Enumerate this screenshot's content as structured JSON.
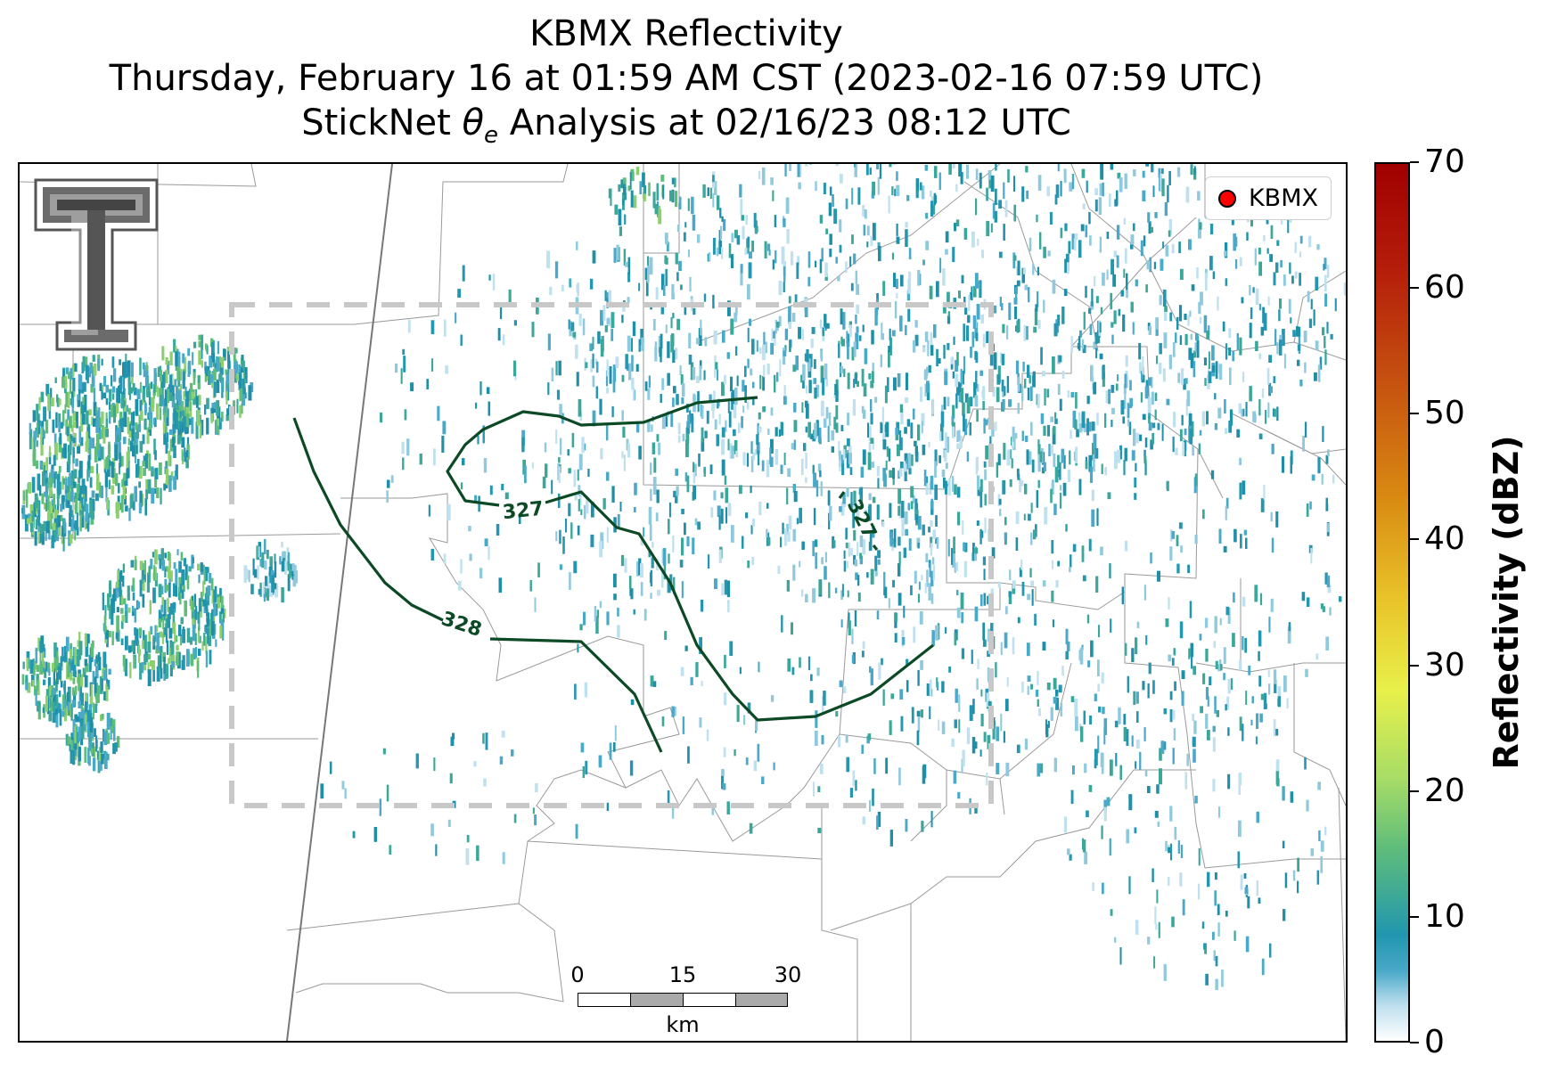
{
  "title": {
    "line1": "KBMX Reflectivity",
    "line2": "Thursday, February 16 at 01:59 AM CST (2023-02-16 07:59 UTC)",
    "line3_prefix": "StickNet ",
    "line3_symbol": "θ",
    "line3_subscript": "e",
    "line3_suffix": " Analysis at 02/16/23 08:12 UTC"
  },
  "legend": {
    "label": "KBMX",
    "marker_color": "#ff0000"
  },
  "colorbar": {
    "label": "Reflectivity (dBZ)",
    "ticks": [
      "0",
      "10",
      "20",
      "30",
      "40",
      "50",
      "60",
      "70"
    ],
    "range": [
      0,
      70
    ]
  },
  "contours": {
    "labels": [
      "327",
      "327",
      "328"
    ],
    "color": "#0b4a24"
  },
  "scalebar": {
    "ticks": [
      "0",
      "15",
      "30"
    ],
    "unit": "km"
  },
  "logo": {
    "name": "Texas Tech Double T",
    "color": "#6b6b6b"
  }
}
